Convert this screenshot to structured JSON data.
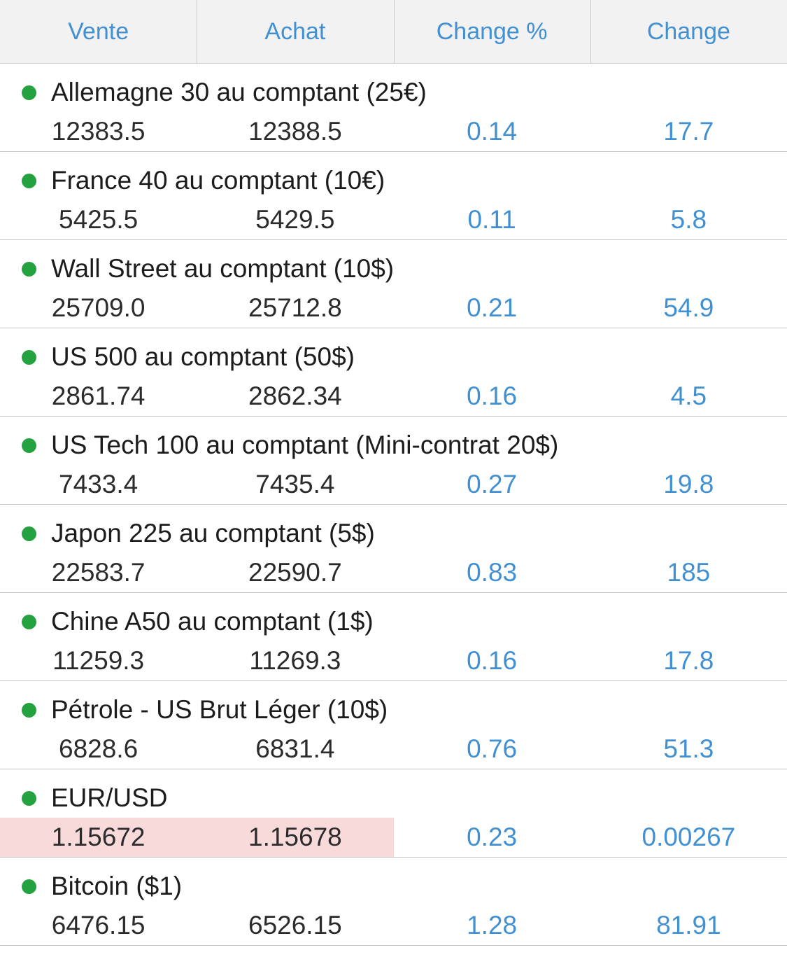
{
  "colors": {
    "accent_blue": "#4190d2",
    "open_green": "#23a23f",
    "price_flash_highlight": "#f9dada",
    "header_bg": "#f2f2f3"
  },
  "table": {
    "headers": [
      "Vente",
      "Achat",
      "Change %",
      "Change"
    ],
    "rows": [
      {
        "name": "Allemagne 30 au comptant (25€)",
        "vente": "12383.5",
        "achat": "12388.5",
        "change_pct": "0.14",
        "change": "17.7",
        "highlight": false
      },
      {
        "name": "France 40 au comptant (10€)",
        "vente": "5425.5",
        "achat": "5429.5",
        "change_pct": "0.11",
        "change": "5.8",
        "highlight": false
      },
      {
        "name": "Wall Street au comptant (10$)",
        "vente": "25709.0",
        "achat": "25712.8",
        "change_pct": "0.21",
        "change": "54.9",
        "highlight": false
      },
      {
        "name": "US 500 au comptant (50$)",
        "vente": "2861.74",
        "achat": "2862.34",
        "change_pct": "0.16",
        "change": "4.5",
        "highlight": false
      },
      {
        "name": "US Tech 100 au comptant (Mini-contrat 20$)",
        "vente": "7433.4",
        "achat": "7435.4",
        "change_pct": "0.27",
        "change": "19.8",
        "highlight": false
      },
      {
        "name": "Japon 225 au comptant (5$)",
        "vente": "22583.7",
        "achat": "22590.7",
        "change_pct": "0.83",
        "change": "185",
        "highlight": false
      },
      {
        "name": "Chine A50 au comptant (1$)",
        "vente": "11259.3",
        "achat": "11269.3",
        "change_pct": "0.16",
        "change": "17.8",
        "highlight": false
      },
      {
        "name": "Pétrole - US Brut Léger (10$)",
        "vente": "6828.6",
        "achat": "6831.4",
        "change_pct": "0.76",
        "change": "51.3",
        "highlight": false
      },
      {
        "name": "EUR/USD",
        "vente": "1.15672",
        "achat": "1.15678",
        "change_pct": "0.23",
        "change": "0.00267",
        "highlight": true
      },
      {
        "name": "Bitcoin ($1)",
        "vente": "6476.15",
        "achat": "6526.15",
        "change_pct": "1.28",
        "change": "81.91",
        "highlight": false
      }
    ]
  }
}
